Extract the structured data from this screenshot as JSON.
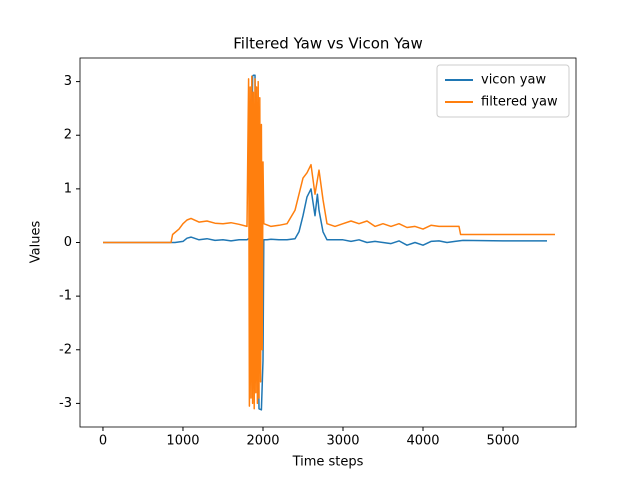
{
  "chart_data": {
    "type": "line",
    "title": "Filtered Yaw vs Vicon Yaw",
    "x_label": "Time steps",
    "y_label": "Values",
    "xlim": [
      -287,
      5912
    ],
    "ylim": [
      -3.44,
      3.44
    ],
    "xticks": [
      0,
      1000,
      2000,
      3000,
      4000,
      5000
    ],
    "yticks": [
      -3,
      -2,
      -1,
      0,
      1,
      2,
      3
    ],
    "legend": "upper right",
    "series": [
      {
        "name": "vicon yaw",
        "color": "#1f77b4",
        "x": [
          0,
          800,
          900,
          1000,
          1050,
          1100,
          1200,
          1300,
          1400,
          1500,
          1600,
          1700,
          1800,
          1850,
          1870,
          1880,
          1900,
          1950,
          1980,
          2000,
          2010,
          2050,
          2100,
          2200,
          2300,
          2400,
          2450,
          2500,
          2550,
          2600,
          2630,
          2650,
          2680,
          2700,
          2750,
          2800,
          2900,
          3000,
          3100,
          3200,
          3300,
          3400,
          3500,
          3600,
          3700,
          3800,
          3900,
          4000,
          4100,
          4200,
          4300,
          4400,
          4500,
          5000,
          5550
        ],
        "values": [
          0,
          0,
          0,
          0.02,
          0.08,
          0.1,
          0.05,
          0.07,
          0.04,
          0.05,
          0.03,
          0.05,
          0.05,
          0.1,
          3.1,
          3.12,
          3.12,
          -3.1,
          -3.12,
          -2.2,
          0.05,
          0.05,
          0.06,
          0.05,
          0.05,
          0.07,
          0.2,
          0.5,
          0.85,
          1.0,
          0.7,
          0.5,
          0.9,
          0.6,
          0.2,
          0.05,
          0.05,
          0.05,
          0.02,
          0.05,
          0,
          0.02,
          0,
          -0.02,
          0.03,
          -0.05,
          0,
          -0.05,
          0.02,
          0.03,
          0,
          0.02,
          0.04,
          0.03,
          0.03
        ]
      },
      {
        "name": "filtered yaw",
        "color": "#ff7f0e",
        "x": [
          0,
          850,
          870,
          950,
          1000,
          1050,
          1100,
          1200,
          1300,
          1400,
          1500,
          1600,
          1700,
          1800,
          1820,
          1830,
          1840,
          1850,
          1860,
          1870,
          1880,
          1890,
          1900,
          1910,
          1920,
          1930,
          1940,
          1950,
          1960,
          1970,
          1980,
          1990,
          2000,
          2010,
          2100,
          2200,
          2300,
          2400,
          2450,
          2500,
          2550,
          2600,
          2650,
          2700,
          2750,
          2800,
          2900,
          3000,
          3100,
          3200,
          3300,
          3400,
          3500,
          3600,
          3700,
          3800,
          3900,
          4000,
          4100,
          4200,
          4300,
          4450,
          4470,
          5000,
          5650
        ],
        "values": [
          0,
          0,
          0.15,
          0.25,
          0.35,
          0.42,
          0.45,
          0.38,
          0.4,
          0.36,
          0.35,
          0.37,
          0.34,
          0.3,
          3.05,
          -3.05,
          2.9,
          -2.9,
          3.1,
          -3.0,
          2.8,
          -3.1,
          3.05,
          -2.8,
          2.9,
          -3.0,
          3.0,
          -2.9,
          2.7,
          -2.6,
          2.2,
          -2.0,
          1.5,
          0.35,
          0.3,
          0.32,
          0.35,
          0.6,
          0.9,
          1.2,
          1.3,
          1.45,
          0.9,
          1.35,
          0.8,
          0.35,
          0.3,
          0.35,
          0.4,
          0.35,
          0.4,
          0.3,
          0.35,
          0.3,
          0.35,
          0.28,
          0.3,
          0.25,
          0.32,
          0.3,
          0.3,
          0.3,
          0.15,
          0.15,
          0.15
        ]
      }
    ]
  }
}
